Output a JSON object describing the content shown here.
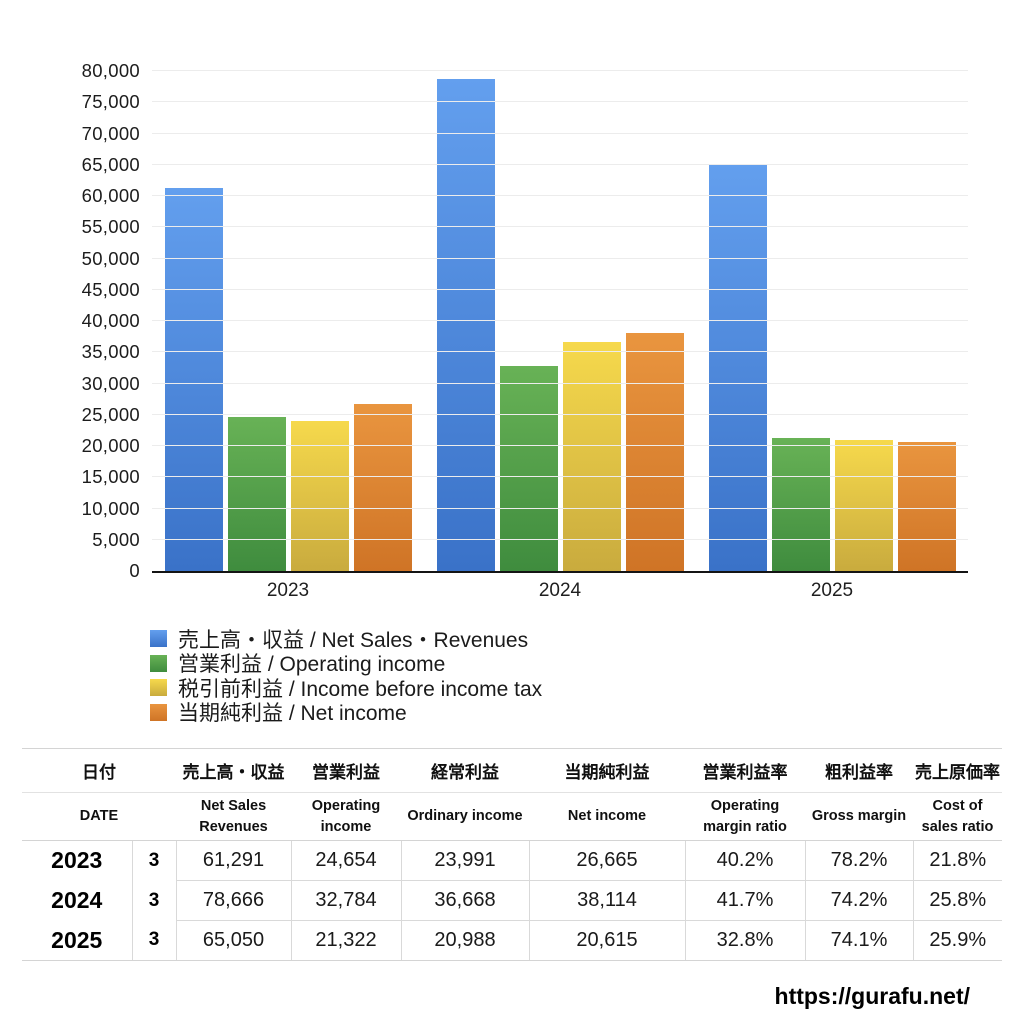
{
  "page": {
    "background": "#ffffff"
  },
  "chart_data": {
    "type": "bar",
    "title": "",
    "xlabel": "",
    "ylabel": "",
    "categories": [
      "2023",
      "2024",
      "2025"
    ],
    "series": [
      {
        "name": "売上高・収益 / Net Sales・Revenues",
        "values": [
          61291,
          78666,
          65050
        ],
        "color_top": "#639FEE",
        "color_bottom": "#3A72C8"
      },
      {
        "name": "営業利益 / Operating income",
        "values": [
          24654,
          32784,
          21322
        ],
        "color_top": "#68B256",
        "color_bottom": "#3F8C3E"
      },
      {
        "name": "税引前利益 / Income before income tax",
        "values": [
          23991,
          36668,
          20988
        ],
        "color_top": "#F6D94C",
        "color_bottom": "#C9AB3E"
      },
      {
        "name": "当期純利益 / Net income",
        "values": [
          26665,
          38114,
          20615
        ],
        "color_top": "#E9953F",
        "color_bottom": "#CF7426"
      }
    ],
    "ylim": [
      0,
      80000
    ],
    "ytick_step": 5000,
    "grid": true,
    "legend_position": "bottom-left",
    "axis_color": "#141414",
    "gridline_color": "#ececec"
  },
  "table": {
    "headers_jp": [
      "日付",
      "売上高・収益",
      "営業利益",
      "経常利益",
      "当期純利益",
      "営業利益率",
      "粗利益率",
      "売上原価率"
    ],
    "headers_en": [
      "DATE",
      "Net Sales Revenues",
      "Operating income",
      "Ordinary income",
      "Net income",
      "Operating margin ratio",
      "Gross margin",
      "Cost of sales ratio"
    ],
    "rows": [
      {
        "year": "2023",
        "month": "3",
        "values": [
          "61,291",
          "24,654",
          "23,991",
          "26,665",
          "40.2%",
          "78.2%",
          "21.8%"
        ]
      },
      {
        "year": "2024",
        "month": "3",
        "values": [
          "78,666",
          "32,784",
          "36,668",
          "38,114",
          "41.7%",
          "74.2%",
          "25.8%"
        ]
      },
      {
        "year": "2025",
        "month": "3",
        "values": [
          "65,050",
          "21,322",
          "20,988",
          "20,615",
          "32.8%",
          "74.1%",
          "25.9%"
        ]
      }
    ]
  },
  "footer": {
    "url": "https://gurafu.net/"
  }
}
